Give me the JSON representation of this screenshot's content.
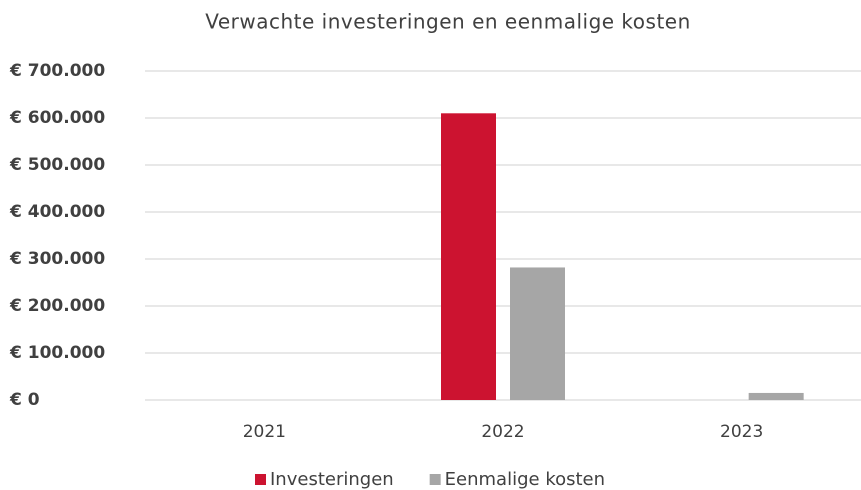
{
  "chart_data": {
    "type": "bar",
    "title": "Verwachte investeringen en eenmalige kosten",
    "categories": [
      "2021",
      "2022",
      "2023"
    ],
    "series": [
      {
        "name": "Investeringen",
        "color": "#cc1330",
        "values": [
          0,
          610000,
          0
        ]
      },
      {
        "name": "Eenmalige kosten",
        "color": "#a6a6a6",
        "values": [
          0,
          282000,
          15000
        ]
      }
    ],
    "ylim": [
      0,
      700000
    ],
    "yticks": [
      {
        "value": 0,
        "label": "€ 0"
      },
      {
        "value": 100000,
        "label": "€ 100.000"
      },
      {
        "value": 200000,
        "label": "€ 200.000"
      },
      {
        "value": 300000,
        "label": "€ 300.000"
      },
      {
        "value": 400000,
        "label": "€ 400.000"
      },
      {
        "value": 500000,
        "label": "€ 500.000"
      },
      {
        "value": 600000,
        "label": "€ 600.000"
      },
      {
        "value": 700000,
        "label": "€ 700.000"
      }
    ],
    "grid": true,
    "legend": "bottom"
  }
}
